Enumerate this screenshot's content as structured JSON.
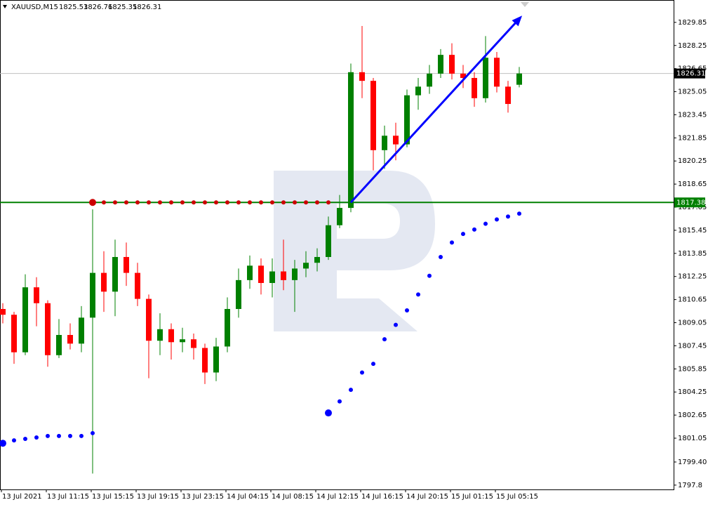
{
  "header": {
    "symbol": "XAUUSD,M15",
    "quote": [
      1825.53,
      1826.76,
      1825.35,
      1826.31
    ]
  },
  "chart_data": {
    "type": "candlestick",
    "categories": [
      "13 Jul 2021",
      null,
      null,
      null,
      "13 Jul 11:15",
      null,
      null,
      null,
      "13 Jul 15:15",
      null,
      null,
      null,
      "13 Jul 19:15",
      null,
      null,
      null,
      "13 Jul 23:15",
      null,
      null,
      null,
      "14 Jul 04:15",
      null,
      null,
      null,
      "14 Jul 08:15",
      null,
      null,
      null,
      "14 Jul 12:15",
      null,
      null,
      null,
      "14 Jul 16:15",
      null,
      null,
      null,
      "14 Jul 20:15",
      null,
      null,
      null,
      "15 Jul 01:15",
      null,
      null,
      null,
      "15 Jul 05:15",
      null,
      null
    ],
    "open": [
      1810.0,
      1809.6,
      1807.0,
      1811.5,
      1810.4,
      1806.8,
      1808.2,
      1807.6,
      1809.4,
      1812.5,
      1811.2,
      1813.6,
      1812.5,
      1810.7,
      1807.8,
      1808.6,
      1807.7,
      1807.9,
      1807.3,
      1805.6,
      1807.4,
      1810.0,
      1812.0,
      1813.0,
      1811.8,
      1812.6,
      1812.0,
      1812.8,
      1813.2,
      1813.6,
      1815.8,
      1817.0,
      1826.4,
      1825.8,
      1821.0,
      1822.0,
      1821.4,
      1824.8,
      1825.4,
      1826.3,
      1827.6,
      1826.3,
      1826.0,
      1824.6,
      1827.4,
      1825.4,
      1825.53
    ],
    "high": [
      1810.4,
      1809.8,
      1812.4,
      1812.2,
      1810.6,
      1809.3,
      1809.0,
      1810.2,
      1816.9,
      1814.0,
      1814.8,
      1814.6,
      1813.2,
      1811.0,
      1809.7,
      1809.0,
      1808.7,
      1808.3,
      1807.6,
      1808.0,
      1810.8,
      1812.8,
      1813.7,
      1813.5,
      1813.5,
      1814.8,
      1813.4,
      1814.0,
      1814.2,
      1816.4,
      1817.9,
      1827.0,
      1829.6,
      1826.0,
      1822.7,
      1822.9,
      1825.2,
      1826.0,
      1826.9,
      1828.0,
      1828.4,
      1826.9,
      1826.4,
      1828.9,
      1827.8,
      1825.8,
      1826.76
    ],
    "low": [
      1809.0,
      1806.2,
      1806.8,
      1808.8,
      1806.0,
      1806.6,
      1807.2,
      1807.0,
      1798.6,
      1809.8,
      1809.5,
      1811.6,
      1810.2,
      1805.2,
      1806.8,
      1806.5,
      1807.0,
      1806.5,
      1804.8,
      1805.0,
      1807.0,
      1809.4,
      1811.4,
      1811.0,
      1810.8,
      1811.3,
      1809.8,
      1812.2,
      1812.6,
      1813.4,
      1815.6,
      1816.7,
      1824.6,
      1819.6,
      1819.7,
      1820.3,
      1821.2,
      1823.8,
      1824.9,
      1826.0,
      1825.9,
      1825.3,
      1824.0,
      1824.3,
      1825.0,
      1823.6,
      1825.35
    ],
    "close": [
      1809.6,
      1807.0,
      1811.5,
      1810.4,
      1806.8,
      1808.2,
      1807.6,
      1809.4,
      1812.5,
      1811.2,
      1813.6,
      1812.5,
      1810.7,
      1807.8,
      1808.6,
      1807.7,
      1807.9,
      1807.3,
      1805.6,
      1807.4,
      1810.0,
      1812.0,
      1813.0,
      1811.8,
      1812.6,
      1812.0,
      1812.8,
      1813.2,
      1813.6,
      1815.8,
      1817.0,
      1826.4,
      1825.8,
      1821.0,
      1822.0,
      1821.4,
      1824.8,
      1825.4,
      1826.3,
      1827.6,
      1826.3,
      1826.0,
      1824.6,
      1827.4,
      1825.4,
      1824.2,
      1826.31
    ],
    "up_color": "#008000",
    "down_color": "#ff0000",
    "ylim": [
      1797.5,
      1831.4
    ],
    "yticks": [
      1829.85,
      1828.25,
      1826.65,
      1825.05,
      1823.45,
      1821.85,
      1820.25,
      1818.65,
      1817.05,
      1815.45,
      1813.85,
      1812.25,
      1810.65,
      1809.05,
      1807.45,
      1805.85,
      1804.25,
      1802.65,
      1801.05,
      {
        "value": 1799.4,
        "label": "1799.40"
      },
      1797.8
    ],
    "levels": [
      {
        "value": 1826.31,
        "color": "#c0c0c0",
        "box": "#000000"
      },
      {
        "value": 1817.38,
        "color": "#008000",
        "box": "#008000"
      }
    ],
    "dots": [
      {
        "color": "#0000ff",
        "values": [
          1800.7,
          1800.9,
          1801.0,
          1801.1,
          1801.2,
          1801.2,
          1801.2,
          1801.2,
          1801.4,
          null,
          null,
          null,
          null,
          null,
          null,
          null,
          null,
          null,
          null,
          null,
          null,
          null,
          null,
          null,
          null,
          null,
          null,
          null,
          null,
          1802.8,
          1803.6,
          1804.4,
          1805.6,
          1806.2,
          1807.9,
          1808.9,
          1809.9,
          1811.0,
          1812.3,
          1813.6,
          1814.6,
          1815.2,
          1815.5,
          1815.9,
          1816.2,
          1816.4,
          1816.6
        ]
      },
      {
        "color": "#cc0000",
        "values": [
          null,
          null,
          null,
          null,
          null,
          null,
          null,
          null,
          1817.38,
          1817.38,
          1817.38,
          1817.38,
          1817.38,
          1817.38,
          1817.38,
          1817.38,
          1817.38,
          1817.38,
          1817.38,
          1817.38,
          1817.38,
          1817.38,
          1817.38,
          1817.38,
          1817.38,
          1817.38,
          1817.38,
          1817.38,
          1817.38,
          1817.38,
          null,
          null,
          null,
          null,
          null,
          null,
          null,
          null,
          null,
          null,
          null,
          null,
          null,
          null,
          null,
          null,
          null
        ]
      }
    ],
    "trend": {
      "color": "#0000ff",
      "values": [
        null,
        null,
        null,
        null,
        null,
        null,
        null,
        null,
        null,
        null,
        null,
        null,
        null,
        null,
        null,
        null,
        null,
        null,
        null,
        null,
        null,
        null,
        null,
        null,
        null,
        null,
        null,
        null,
        null,
        null,
        null,
        1817.38,
        null,
        null,
        null,
        null,
        null,
        null,
        null,
        null,
        null,
        null,
        null,
        null,
        null,
        null,
        1830.1
      ]
    }
  }
}
